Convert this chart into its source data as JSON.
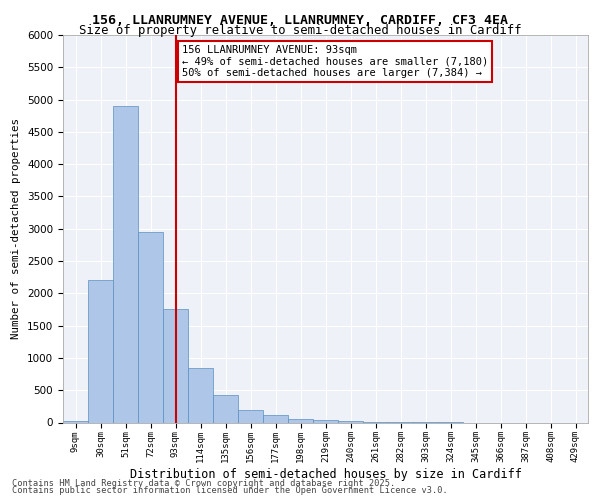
{
  "title_line1": "156, LLANRUMNEY AVENUE, LLANRUMNEY, CARDIFF, CF3 4EA",
  "title_line2": "Size of property relative to semi-detached houses in Cardiff",
  "xlabel": "Distribution of semi-detached houses by size in Cardiff",
  "ylabel": "Number of semi-detached properties",
  "footer_line1": "Contains HM Land Registry data © Crown copyright and database right 2025.",
  "footer_line2": "Contains public sector information licensed under the Open Government Licence v3.0.",
  "annotation_line1": "156 LLANRUMNEY AVENUE: 93sqm",
  "annotation_line2": "← 49% of semi-detached houses are smaller (7,180)",
  "annotation_line3": "50% of semi-detached houses are larger (7,384) →",
  "property_sqm": 93,
  "bin_labels": [
    "9sqm",
    "30sqm",
    "51sqm",
    "72sqm",
    "93sqm",
    "114sqm",
    "135sqm",
    "156sqm",
    "177sqm",
    "198sqm",
    "219sqm",
    "240sqm",
    "261sqm",
    "282sqm",
    "303sqm",
    "324sqm",
    "345sqm",
    "366sqm",
    "387sqm",
    "408sqm",
    "429sqm"
  ],
  "bar_heights": [
    30,
    2200,
    4900,
    2950,
    1750,
    850,
    420,
    200,
    110,
    60,
    45,
    30,
    10,
    5,
    2,
    1,
    0,
    0,
    0,
    0,
    0
  ],
  "bar_color": "#aec6e8",
  "bar_edge_color": "#5a8fc0",
  "vline_color": "#cc0000",
  "vline_x": 4,
  "ylim": [
    0,
    6000
  ],
  "yticks": [
    0,
    500,
    1000,
    1500,
    2000,
    2500,
    3000,
    3500,
    4000,
    4500,
    5000,
    5500,
    6000
  ],
  "background_color": "#eef2f8",
  "grid_color": "#ffffff",
  "annotation_box_color": "#cc0000",
  "annotation_box_fill": "#ffffff"
}
